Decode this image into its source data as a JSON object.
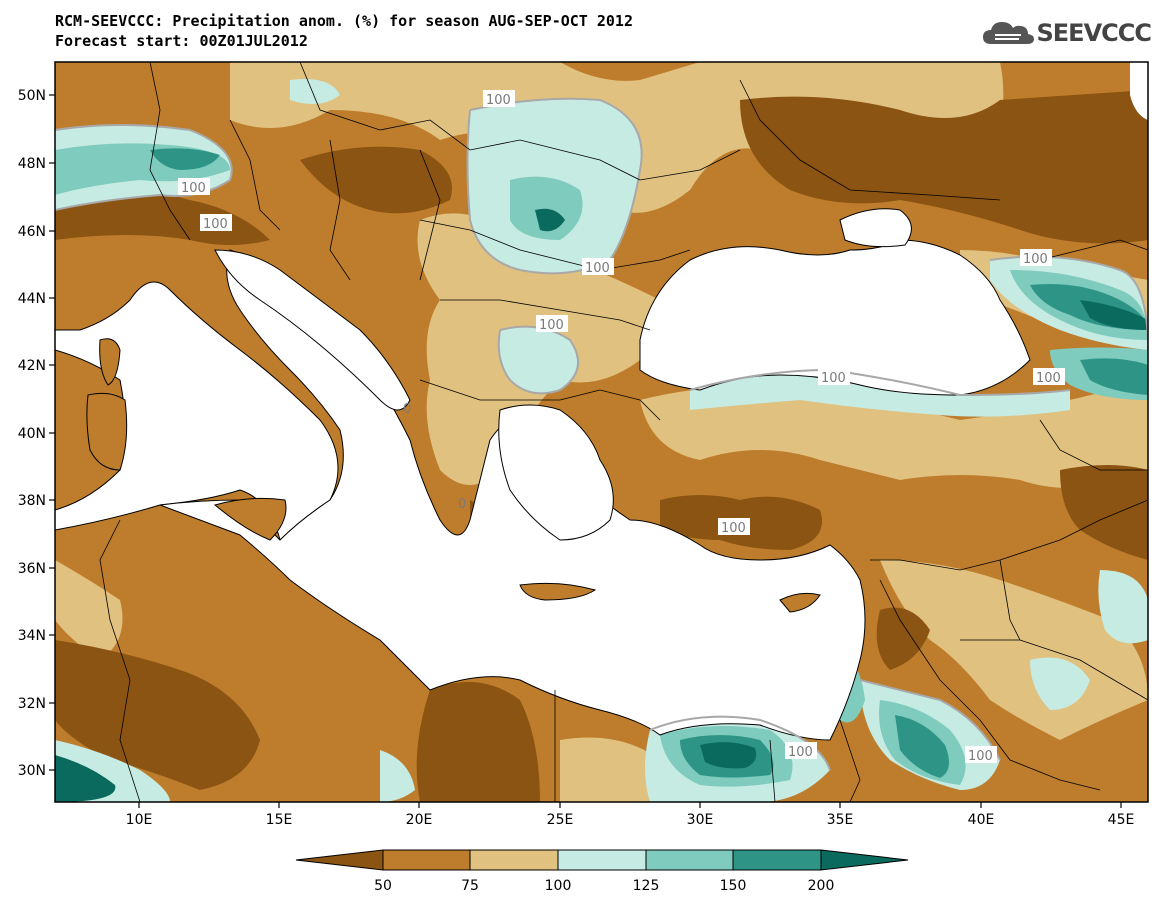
{
  "header": {
    "title": "RCM-SEEVCCC: Precipitation anom. (%) for season AUG-SEP-OCT 2012",
    "subtitle": "Forecast start: 00Z01JUL2012",
    "logo_text": "SEEVCCC"
  },
  "axes": {
    "lon_ticks": [
      "10E",
      "15E",
      "20E",
      "25E",
      "30E",
      "35E",
      "40E",
      "45E"
    ],
    "lat_ticks": [
      "50N",
      "48N",
      "46N",
      "44N",
      "42N",
      "40N",
      "38N",
      "36N",
      "34N",
      "32N",
      "30N"
    ]
  },
  "contour_labels": [
    "100",
    "100",
    "100",
    "100",
    "100",
    "100",
    "100",
    "100",
    "100",
    "100",
    "100",
    "0",
    "0"
  ],
  "colorbar": {
    "labels": [
      "50",
      "75",
      "100",
      "125",
      "150",
      "200"
    ],
    "colors": [
      "#8c5412",
      "#be7d2c",
      "#e1c17f",
      "#c6ebe3",
      "#7fcbbd",
      "#2e9586",
      "#0a6a5e"
    ]
  },
  "colors": {
    "very_dry": "#8c5412",
    "dry": "#be7d2c",
    "slightly_dry": "#e1c17f",
    "slightly_wet": "#c6ebe3",
    "wet": "#7fcbbd",
    "very_wet": "#2e9586",
    "extreme_wet": "#0a6a5e",
    "sea": "#ffffff"
  }
}
